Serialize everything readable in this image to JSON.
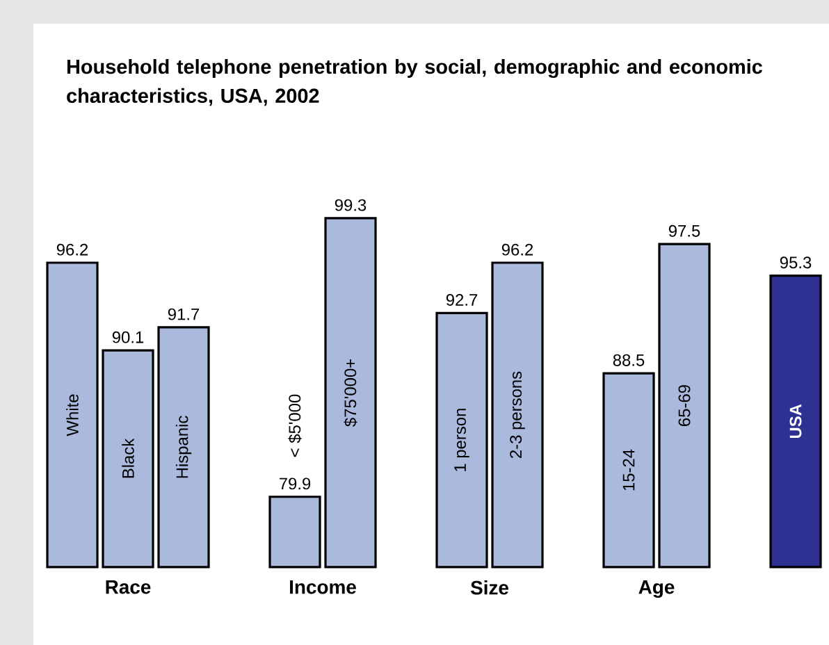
{
  "chart_data": {
    "type": "bar",
    "title": "Household telephone penetration by social, demographic and economic characteristics, USA, 2002",
    "categories": [
      "White",
      "Black",
      "Hispanic",
      null,
      "< $5'000",
      "$75'000+",
      null,
      "1 person",
      "2-3 persons",
      null,
      "15-24",
      "65-69",
      null,
      "USA"
    ],
    "values": [
      96.2,
      90.1,
      91.7,
      null,
      79.9,
      99.3,
      null,
      92.7,
      96.2,
      null,
      88.5,
      97.5,
      null,
      95.3
    ],
    "colors": [
      "#aab9dc",
      "#aab9dc",
      "#aab9dc",
      null,
      "#aab9dc",
      "#aab9dc",
      null,
      "#aab9dc",
      "#aab9dc",
      null,
      "#aab9dc",
      "#aab9dc",
      null,
      "#2e3192"
    ],
    "ylim": [
      75,
      99.3
    ],
    "data_labels": true,
    "annotations": [
      "Race",
      "Income",
      "Size",
      "Age"
    ]
  }
}
